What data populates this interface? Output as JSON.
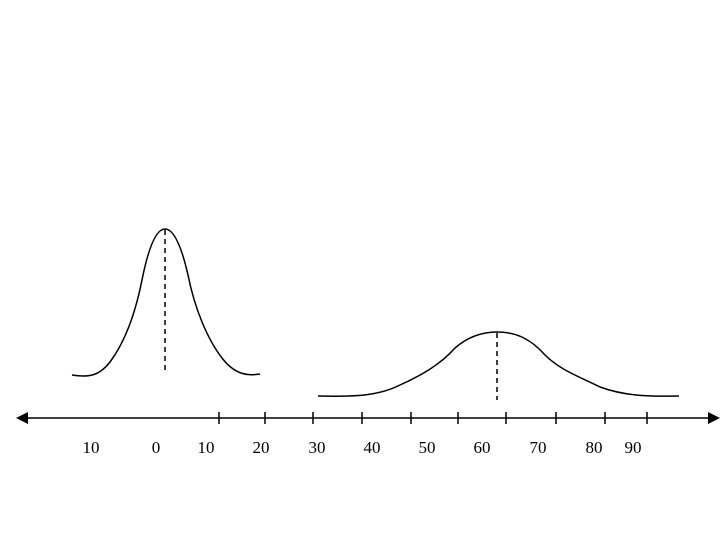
{
  "axis": {
    "labels": [
      "10",
      "0",
      "10",
      "20",
      "30",
      "40",
      "50",
      "60",
      "70",
      "80",
      "90"
    ]
  }
}
